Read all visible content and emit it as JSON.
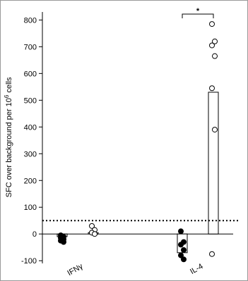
{
  "chart_data": {
    "type": "bar",
    "ylabel": "SFC over background per 10",
    "ylabel_sup": "6",
    "ylabel_end": " cells",
    "categories": [
      "IFNγ",
      "IL-4"
    ],
    "series": [
      {
        "color": "#000000",
        "values": [
          -10,
          -70
        ],
        "points": [
          [
            -5,
            -10,
            -15,
            -20,
            -25,
            -30
          ],
          [
            10,
            -30,
            -40,
            -60,
            -80,
            -95
          ]
        ]
      },
      {
        "color": "#ffffff",
        "values": [
          5,
          530
        ],
        "points": [
          [
            30,
            15,
            5,
            0
          ],
          [
            785,
            720,
            705,
            665,
            545,
            390,
            -75
          ]
        ]
      }
    ],
    "hline": 50,
    "annotation": "*",
    "ylim": [
      -110,
      830
    ],
    "yticks": [
      -100,
      0,
      100,
      200,
      300,
      400,
      500,
      600,
      700,
      800
    ]
  }
}
